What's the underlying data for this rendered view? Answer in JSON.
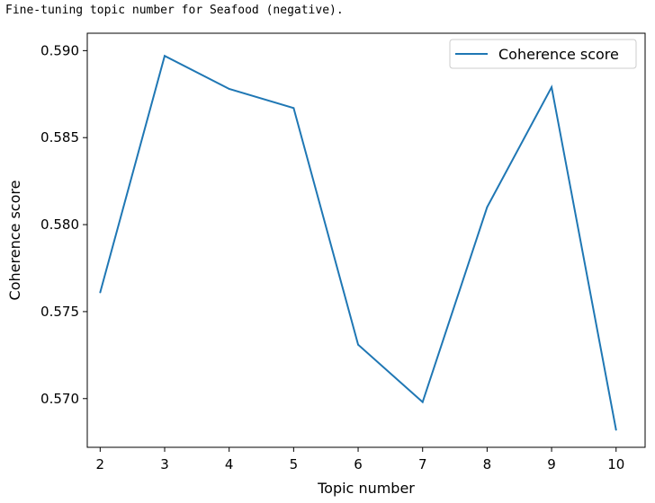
{
  "output_text": "Fine-tuning topic number for Seafood (negative).",
  "chart_data": {
    "type": "line",
    "x": [
      2,
      3,
      4,
      5,
      6,
      7,
      8,
      9,
      10
    ],
    "series": [
      {
        "name": "Coherence score",
        "color": "#1f77b4",
        "values": [
          0.5761,
          0.5897,
          0.5878,
          0.5867,
          0.5731,
          0.5698,
          0.581,
          0.5879,
          0.5682
        ]
      }
    ],
    "xlabel": "Topic number",
    "ylabel": "Coherence score",
    "xlim": [
      1.8,
      10.45
    ],
    "ylim": [
      0.5672,
      0.591
    ],
    "xticks": [
      2,
      3,
      4,
      5,
      6,
      7,
      8,
      9,
      10
    ],
    "xtick_labels": [
      "2",
      "3",
      "4",
      "5",
      "6",
      "7",
      "8",
      "9",
      "10"
    ],
    "yticks": [
      0.57,
      0.575,
      0.58,
      0.585,
      0.59
    ],
    "ytick_labels": [
      "0.570",
      "0.575",
      "0.580",
      "0.585",
      "0.590"
    ],
    "legend_position": "top-right",
    "grid": false
  }
}
